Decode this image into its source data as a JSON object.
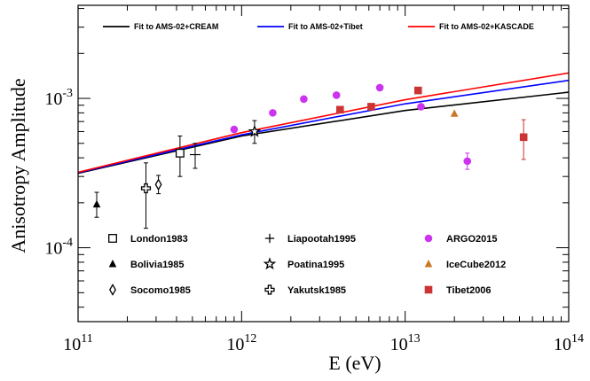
{
  "chart_data": {
    "type": "scatter",
    "xlabel": "E (eV)",
    "ylabel": "Anisotropy Amplitude",
    "xscale": "log",
    "yscale": "log",
    "xlim": [
      100000000000.0,
      100000000000000.0
    ],
    "ylim": [
      3.2e-05,
      0.0042
    ],
    "x_ticks": [
      {
        "value": 100000000000.0,
        "base": "10",
        "exp": "11"
      },
      {
        "value": 1000000000000.0,
        "base": "10",
        "exp": "12"
      },
      {
        "value": 10000000000000.0,
        "base": "10",
        "exp": "13"
      },
      {
        "value": 100000000000000.0,
        "base": "10",
        "exp": "14"
      }
    ],
    "y_ticks": [
      {
        "value": 0.0001,
        "base": "10",
        "exp": "-4"
      },
      {
        "value": 0.001,
        "base": "10",
        "exp": "-3"
      }
    ],
    "fits": [
      {
        "name": "Fit to AMS-02+CREAM",
        "color": "#000000",
        "points": [
          [
            100000000000.0,
            0.000315
          ],
          [
            1000000000000.0,
            0.00056
          ],
          [
            10000000000000.0,
            0.00083
          ],
          [
            100000000000000.0,
            0.0011
          ]
        ]
      },
      {
        "name": "Fit to AMS-02+Tibet",
        "color": "#0000ff",
        "points": [
          [
            100000000000.0,
            0.000318
          ],
          [
            1000000000000.0,
            0.00057
          ],
          [
            10000000000000.0,
            0.00092
          ],
          [
            100000000000000.0,
            0.00132
          ]
        ]
      },
      {
        "name": "Fit to AMS-02+KASCADE",
        "color": "#ff0000",
        "points": [
          [
            100000000000.0,
            0.00032
          ],
          [
            1000000000000.0,
            0.00059
          ],
          [
            10000000000000.0,
            0.00098
          ],
          [
            100000000000000.0,
            0.00148
          ]
        ]
      }
    ],
    "series": [
      {
        "name": "London1983",
        "marker": "open-square",
        "color": "#000000",
        "points": [
          {
            "x": 420000000000.0,
            "y": 0.00043,
            "ylo": 0.0003,
            "yhi": 0.00056
          }
        ]
      },
      {
        "name": "Bolivia1985",
        "marker": "filled-triangle",
        "color": "#000000",
        "points": [
          {
            "x": 130000000000.0,
            "y": 0.000195,
            "ylo": 0.00016,
            "yhi": 0.000235
          }
        ]
      },
      {
        "name": "Socomo1985",
        "marker": "open-diamond",
        "color": "#000000",
        "points": [
          {
            "x": 310000000000.0,
            "y": 0.000265,
            "ylo": 0.00023,
            "yhi": 0.000305
          }
        ]
      },
      {
        "name": "Liapootah1995",
        "marker": "plus",
        "color": "#000000",
        "points": [
          {
            "x": 520000000000.0,
            "y": 0.00042,
            "ylo": 0.00034,
            "yhi": 0.0005
          }
        ]
      },
      {
        "name": "Poatina1995",
        "marker": "open-star",
        "color": "#000000",
        "points": [
          {
            "x": 1200000000000.0,
            "y": 0.0006,
            "ylo": 0.0005,
            "yhi": 0.00071
          }
        ]
      },
      {
        "name": "Yakutsk1985",
        "marker": "open-cross",
        "color": "#000000",
        "points": [
          {
            "x": 260000000000.0,
            "y": 0.00025,
            "ylo": 0.000135,
            "yhi": 0.00037
          }
        ]
      },
      {
        "name": "ARGO2015",
        "marker": "filled-circle",
        "color": "#cc33ee",
        "points": [
          {
            "x": 900000000000.0,
            "y": 0.00062
          },
          {
            "x": 1550000000000.0,
            "y": 0.0008
          },
          {
            "x": 2400000000000.0,
            "y": 0.00099
          },
          {
            "x": 3800000000000.0,
            "y": 0.00105
          },
          {
            "x": 7000000000000.0,
            "y": 0.00118
          },
          {
            "x": 12500000000000.0,
            "y": 0.00088
          },
          {
            "x": 24000000000000.0,
            "y": 0.00038,
            "ylo": 0.000335,
            "yhi": 0.00043
          }
        ]
      },
      {
        "name": "IceCube2012",
        "marker": "filled-triangle",
        "color": "#cc7722",
        "points": [
          {
            "x": 20000000000000.0,
            "y": 0.00079
          }
        ]
      },
      {
        "name": "Tibet2006",
        "marker": "filled-square",
        "color": "#cc3333",
        "points": [
          {
            "x": 4000000000000.0,
            "y": 0.00084
          },
          {
            "x": 6200000000000.0,
            "y": 0.00088
          },
          {
            "x": 12000000000000.0,
            "y": 0.00113
          },
          {
            "x": 53000000000000.0,
            "y": 0.00055,
            "ylo": 0.00039,
            "yhi": 0.00072
          }
        ]
      }
    ],
    "legend_top": [
      "Fit to AMS-02+CREAM",
      "Fit to AMS-02+Tibet",
      "Fit to AMS-02+KASCADE"
    ],
    "legend_bottom": [
      "London1983",
      "Liapootah1995",
      "ARGO2015",
      "Bolivia1985",
      "Poatina1995",
      "IceCube2012",
      "Socomo1985",
      "Yakutsk1985",
      "Tibet2006"
    ]
  }
}
